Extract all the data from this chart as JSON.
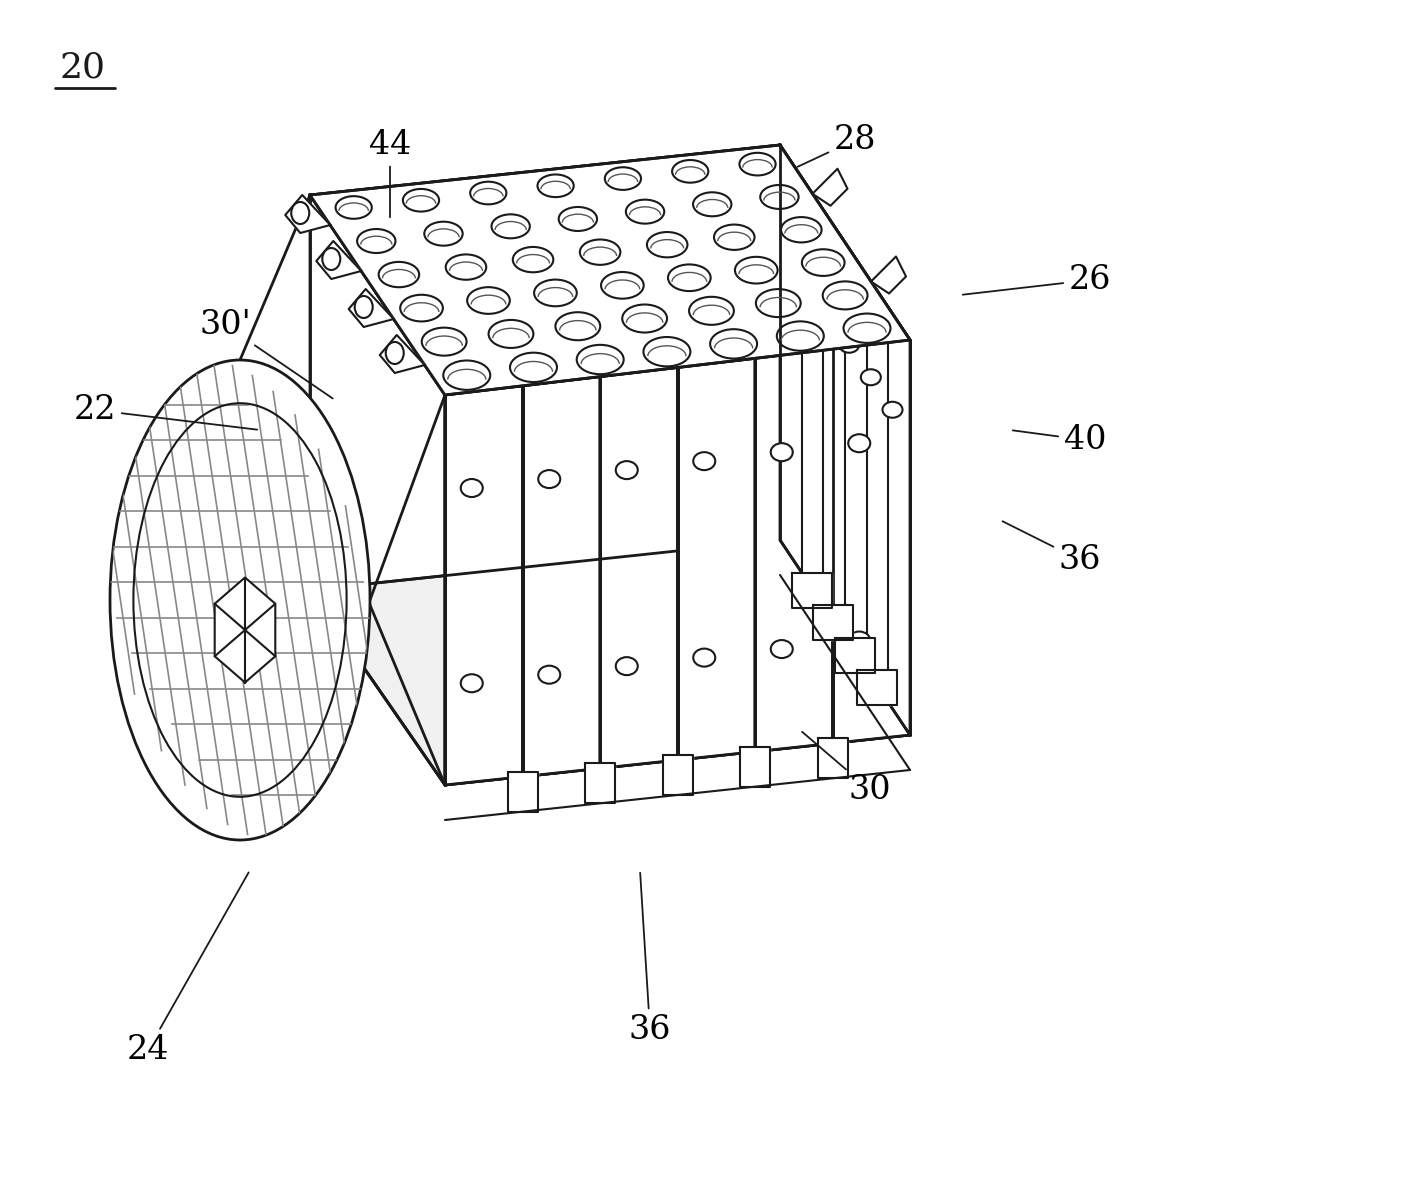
{
  "bg_color": "#ffffff",
  "line_color": "#1a1a1a",
  "fig_width": 14.02,
  "fig_height": 11.87,
  "label_fontsize": 24
}
